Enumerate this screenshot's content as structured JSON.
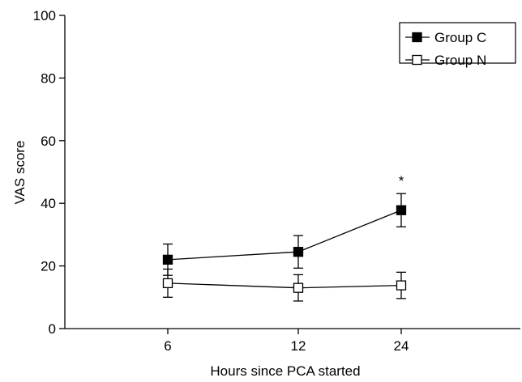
{
  "chart_data": {
    "type": "line",
    "title": "",
    "xlabel": "Hours since PCA started",
    "ylabel": "VAS score",
    "categories": [
      "6",
      "12",
      "24"
    ],
    "ylim": [
      0,
      100
    ],
    "yticks": [
      "0",
      "20",
      "40",
      "60",
      "80",
      "100"
    ],
    "grid": false,
    "legend_position": "top-right",
    "series": [
      {
        "name": "Group C",
        "marker": "filled-square",
        "color": "#000000",
        "values": [
          22,
          24.5,
          37.8
        ],
        "error": [
          5,
          5.2,
          5.3
        ]
      },
      {
        "name": "Group N",
        "marker": "open-square",
        "color": "#000000",
        "values": [
          14.5,
          13,
          13.8
        ],
        "error": [
          4.5,
          4.2,
          4.2
        ]
      }
    ],
    "annotations": [
      {
        "category": "24",
        "text": "*"
      }
    ]
  }
}
